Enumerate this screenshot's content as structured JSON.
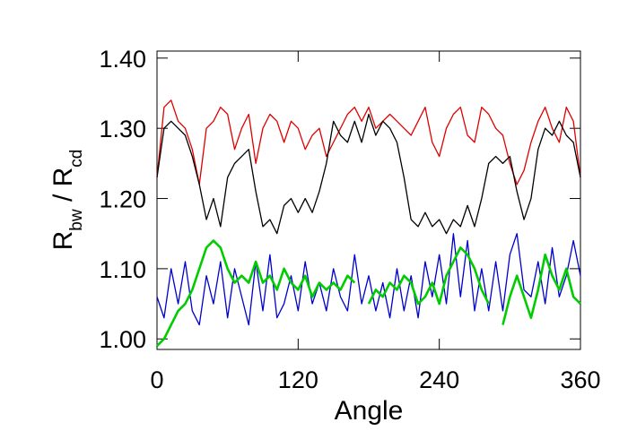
{
  "chart_data": {
    "type": "line",
    "xlabel": "Angle",
    "ylabel": [
      {
        "text": "R"
      },
      {
        "text": "bw",
        "sub": true
      },
      {
        "text": " / R"
      },
      {
        "text": "cd",
        "sub": true
      }
    ],
    "x": [
      0,
      6,
      12,
      18,
      24,
      30,
      36,
      42,
      48,
      54,
      60,
      66,
      72,
      78,
      84,
      90,
      96,
      102,
      108,
      114,
      120,
      126,
      132,
      138,
      144,
      150,
      156,
      162,
      168,
      174,
      180,
      186,
      192,
      198,
      204,
      210,
      216,
      222,
      228,
      234,
      240,
      246,
      252,
      258,
      264,
      270,
      276,
      282,
      288,
      294,
      300,
      306,
      312,
      318,
      324,
      330,
      336,
      342,
      348,
      354,
      360
    ],
    "series": [
      {
        "color": "#e00000",
        "width": 1.3,
        "values": [
          1.23,
          1.33,
          1.34,
          1.31,
          1.3,
          1.27,
          1.22,
          1.3,
          1.31,
          1.33,
          1.32,
          1.27,
          1.3,
          1.32,
          1.25,
          1.3,
          1.32,
          1.31,
          1.28,
          1.31,
          1.3,
          1.27,
          1.29,
          1.3,
          1.26,
          1.28,
          1.3,
          1.32,
          1.33,
          1.31,
          1.33,
          1.3,
          1.31,
          1.32,
          1.31,
          1.3,
          1.29,
          1.31,
          1.33,
          1.28,
          1.26,
          1.3,
          1.32,
          1.33,
          1.29,
          1.28,
          1.33,
          1.32,
          1.3,
          1.29,
          1.25,
          1.22,
          1.24,
          1.28,
          1.31,
          1.33,
          1.3,
          1.28,
          1.33,
          1.31,
          1.23
        ]
      },
      {
        "color": "#000000",
        "width": 1.3,
        "values": [
          1.23,
          1.3,
          1.31,
          1.3,
          1.29,
          1.26,
          1.22,
          1.17,
          1.2,
          1.16,
          1.23,
          1.25,
          1.26,
          1.27,
          1.21,
          1.16,
          1.17,
          1.15,
          1.19,
          1.2,
          1.18,
          1.2,
          1.18,
          1.21,
          1.25,
          1.31,
          1.29,
          1.28,
          1.31,
          1.28,
          1.32,
          1.29,
          1.31,
          1.3,
          1.28,
          1.23,
          1.17,
          1.16,
          1.18,
          1.16,
          1.17,
          1.15,
          1.17,
          1.16,
          1.19,
          1.16,
          1.2,
          1.25,
          1.26,
          1.25,
          1.26,
          1.21,
          1.17,
          1.2,
          1.27,
          1.3,
          1.29,
          1.31,
          1.29,
          1.28,
          1.23
        ]
      },
      {
        "color": "#0000cc",
        "width": 1.3,
        "values": [
          1.06,
          1.03,
          1.1,
          1.05,
          1.11,
          1.04,
          1.02,
          1.09,
          1.05,
          1.11,
          1.03,
          1.1,
          1.06,
          1.02,
          1.11,
          1.04,
          1.12,
          1.03,
          1.05,
          1.09,
          1.04,
          1.11,
          1.05,
          1.08,
          1.04,
          1.1,
          1.06,
          1.04,
          1.12,
          1.05,
          1.09,
          1.04,
          1.08,
          1.03,
          1.1,
          1.04,
          1.09,
          1.03,
          1.11,
          1.06,
          1.12,
          1.05,
          1.15,
          1.06,
          1.14,
          1.04,
          1.1,
          1.04,
          1.11,
          1.04,
          1.12,
          1.15,
          1.07,
          1.06,
          1.11,
          1.05,
          1.13,
          1.06,
          1.09,
          1.14,
          1.09
        ]
      },
      {
        "color": "#00cc00",
        "width": 2.6,
        "values": [
          0.99,
          1.0,
          1.02,
          1.04,
          1.05,
          1.07,
          1.1,
          1.13,
          1.14,
          1.13,
          1.1,
          1.08,
          1.09,
          1.08,
          1.11,
          1.08,
          1.09,
          1.07,
          1.1,
          1.08,
          1.07,
          1.09,
          1.06,
          1.08,
          1.07,
          1.08,
          1.07,
          1.09,
          1.08,
          null,
          1.05,
          1.07,
          1.06,
          1.08,
          1.07,
          1.09,
          1.08,
          1.05,
          1.06,
          1.08,
          1.05,
          1.09,
          1.11,
          1.13,
          1.12,
          1.1,
          1.07,
          1.05,
          null,
          1.02,
          1.06,
          1.09,
          1.06,
          1.03,
          1.07,
          1.12,
          1.09,
          1.07,
          1.1,
          1.06,
          1.05
        ]
      }
    ],
    "xlim": [
      0,
      360
    ],
    "xticks": [
      0,
      120,
      240,
      360
    ],
    "ylim": [
      0.985,
      1.41
    ],
    "yticks": [
      {
        "value": 1,
        "label": "1.00"
      },
      {
        "value": 1.1,
        "label": "1.10"
      },
      {
        "value": 1.2,
        "label": "1.20"
      },
      {
        "value": 1.3,
        "label": "1.30"
      },
      {
        "value": 1.4,
        "label": "1.40"
      }
    ]
  }
}
